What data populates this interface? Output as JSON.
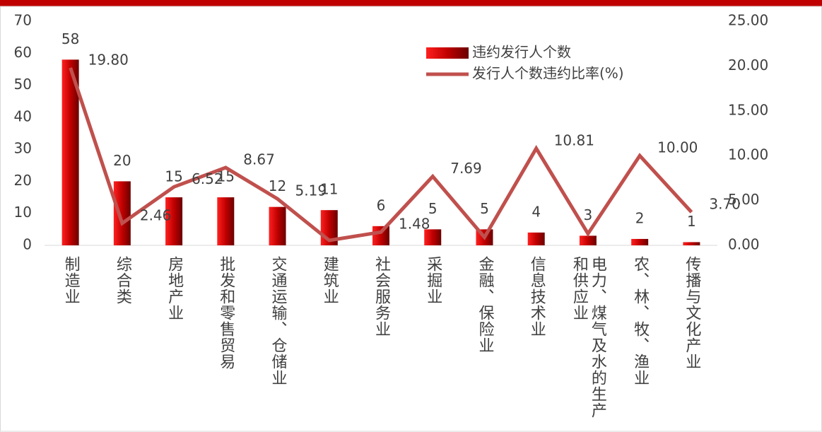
{
  "chart_data": {
    "type": "bar-line",
    "categories": [
      "制造业",
      "综合类",
      "房地产业",
      "批发和零售贸易",
      "交通运输、仓储业",
      "建筑业",
      "社会服务业",
      "采掘业",
      "金融、保险业",
      "信息技术业",
      "电力、煤气及水的生产和供应业",
      "农、林、牧、渔业",
      "传播与文化产业"
    ],
    "series": [
      {
        "name": "违约发行人个数",
        "type": "bar",
        "color": "#c00000",
        "axis": "y",
        "values": [
          58,
          20,
          15,
          15,
          12,
          11,
          6,
          5,
          5,
          4,
          3,
          2,
          1
        ]
      },
      {
        "name": "发行人个数违约比率(%)",
        "type": "line",
        "color": "#c0504d",
        "axis": "y2",
        "values": [
          19.8,
          2.46,
          6.52,
          8.67,
          5.19,
          0.55,
          1.48,
          7.69,
          0.9,
          10.81,
          1.3,
          10.0,
          3.7
        ],
        "value_labels": [
          "19.80",
          "2.46",
          "6.52",
          "8.67",
          "5.19",
          null,
          "1.48",
          "7.69",
          null,
          "10.81",
          null,
          "10.00",
          "3.70"
        ]
      }
    ],
    "ylim": [
      0,
      70
    ],
    "yticks": [
      0,
      10,
      20,
      30,
      40,
      50,
      60,
      70
    ],
    "y2lim": [
      0,
      25
    ],
    "y2ticks": [
      {
        "value": 0,
        "label": "0.00"
      },
      {
        "value": 5,
        "label": "5.00"
      },
      {
        "value": 10,
        "label": "10.00"
      },
      {
        "value": 15,
        "label": "15.00"
      },
      {
        "value": 20,
        "label": "20.00"
      },
      {
        "value": 25,
        "label": "25.00"
      }
    ],
    "legend": "top-right"
  }
}
